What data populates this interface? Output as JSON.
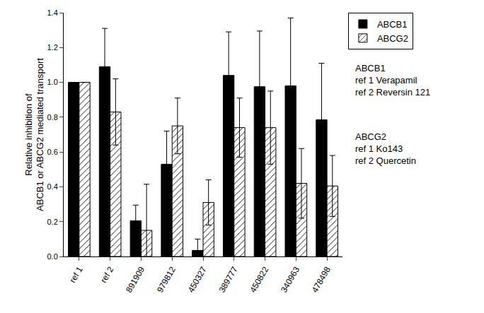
{
  "chart_data": {
    "type": "bar",
    "y_label": [
      "Relative inhibition of",
      "ABCB1 or ABCG2 mediated transport"
    ],
    "categories": [
      "ref 1",
      "ref 2",
      "891909",
      "979812",
      "450327",
      "389777",
      "450822",
      "340963",
      "478498"
    ],
    "series": [
      {
        "name": "ABCB1",
        "color": "#000000",
        "values": [
          1.0,
          1.09,
          0.205,
          0.53,
          0.035,
          1.04,
          0.975,
          0.98,
          0.785
        ],
        "errors": [
          0,
          0.22,
          0.09,
          0.19,
          0.065,
          0.25,
          0.32,
          0.39,
          0.325
        ]
      },
      {
        "name": "ABCG2",
        "color": "#ffffff",
        "marker": "hatched",
        "values": [
          1.0,
          0.83,
          0.15,
          0.75,
          0.31,
          0.74,
          0.74,
          0.42,
          0.405
        ],
        "errors": [
          0,
          0.19,
          0.265,
          0.16,
          0.13,
          0.17,
          0.21,
          0.2,
          0.175
        ]
      }
    ],
    "annotations": [
      [
        "ABCB1",
        "ref 1 Verapamil",
        "ref 2 Reversin 121"
      ],
      [
        "ABCG2",
        "ref 1 Ko143",
        "ref 2 Quercetin"
      ]
    ],
    "ylim": [
      0,
      1.4
    ],
    "yticks": [
      {
        "value": 0,
        "label": "0.0"
      },
      0.2,
      0.4,
      0.6,
      0.8,
      {
        "value": 1,
        "label": "1.0"
      },
      1.2,
      1.4
    ],
    "legend": "top right",
    "grid": false
  }
}
